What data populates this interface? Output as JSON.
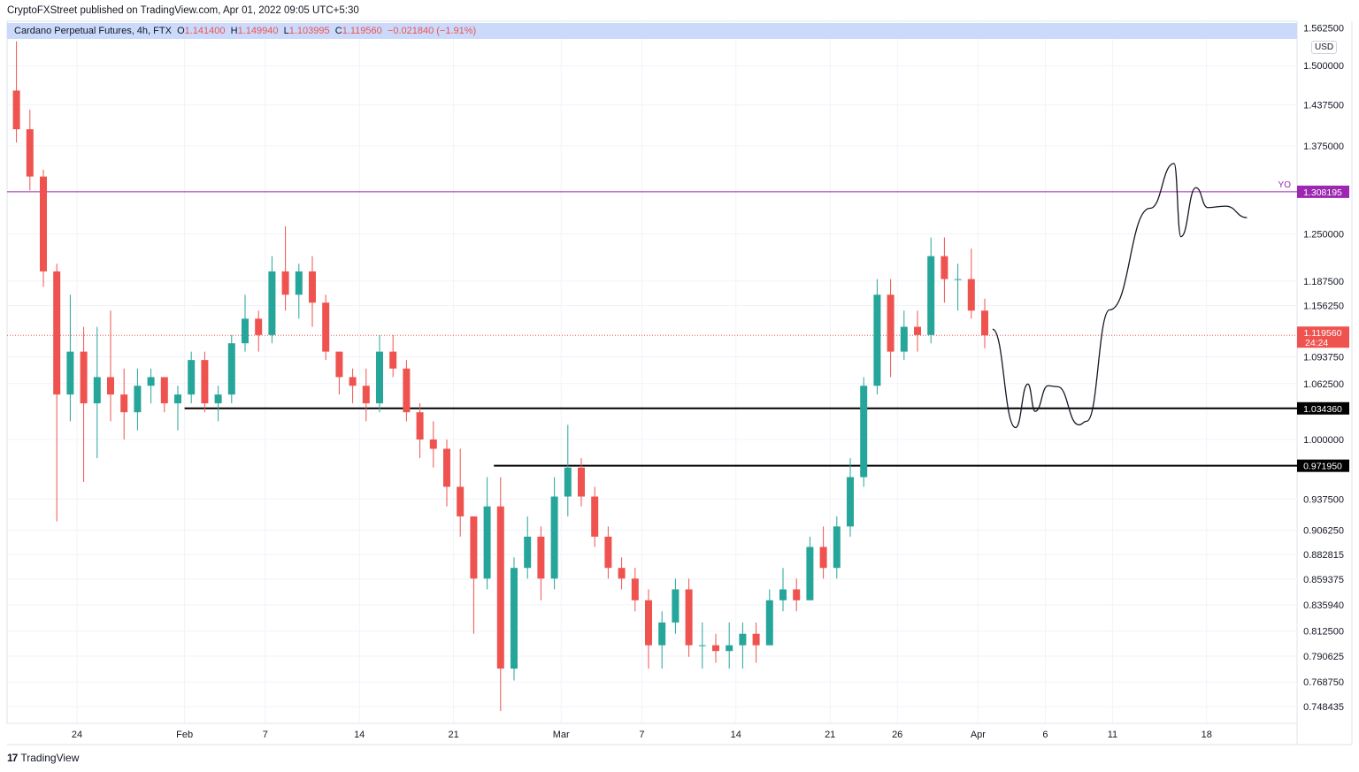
{
  "header": {
    "published": "CryptoFXStreet published on TradingView.com, Apr 01, 2022 09:05 UTC+5:30",
    "symbol": "Cardano Perpetual Futures, 4h, FTX",
    "o_label": "O",
    "o": "1.141400",
    "h_label": "H",
    "h": "1.149940",
    "l_label": "L",
    "l": "1.103995",
    "c_label": "C",
    "c": "1.119560",
    "change": "−0.021840 (−1.91%)"
  },
  "currency_badge": "USD",
  "footer": {
    "logo": "17",
    "brand": "TradingView"
  },
  "colors": {
    "up": "#26a69a",
    "down": "#ef5350",
    "yo_line": "#9c27b0",
    "level_line": "#000000",
    "legend_bg": "#cbd9fb"
  },
  "chart_data": {
    "type": "candlestick",
    "timeframe_shown": "4h",
    "y_scale": "log",
    "ylim": [
      0.735,
      1.58
    ],
    "xlim": [
      "2022-01-19",
      "2022-04-24"
    ],
    "grid": true,
    "y_ticks": [
      "1.562500",
      "1.500000",
      "1.437500",
      "1.375000",
      "1.250000",
      "1.187500",
      "1.156250",
      "1.093750",
      "1.062500",
      "1.000000",
      "0.937500",
      "0.906250",
      "0.882815",
      "0.859375",
      "0.835940",
      "0.812500",
      "0.790625",
      "0.768750",
      "0.748435"
    ],
    "x_ticks": [
      {
        "date": "2022-01-24",
        "label": "24"
      },
      {
        "date": "2022-02-01",
        "label": "Feb"
      },
      {
        "date": "2022-02-07",
        "label": "7"
      },
      {
        "date": "2022-02-14",
        "label": "14"
      },
      {
        "date": "2022-02-21",
        "label": "21"
      },
      {
        "date": "2022-03-01",
        "label": "Mar"
      },
      {
        "date": "2022-03-07",
        "label": "7"
      },
      {
        "date": "2022-03-14",
        "label": "14"
      },
      {
        "date": "2022-03-21",
        "label": "21"
      },
      {
        "date": "2022-03-26",
        "label": "26"
      },
      {
        "date": "2022-04-01",
        "label": "Apr"
      },
      {
        "date": "2022-04-06",
        "label": "6"
      },
      {
        "date": "2022-04-11",
        "label": "11"
      },
      {
        "date": "2022-04-18",
        "label": "18"
      }
    ],
    "ohlc_daily_approx": [
      [
        "2022-01-19",
        1.46,
        1.54,
        1.38,
        1.4
      ],
      [
        "2022-01-20",
        1.4,
        1.43,
        1.31,
        1.33
      ],
      [
        "2022-01-21",
        1.33,
        1.34,
        1.18,
        1.2
      ],
      [
        "2022-01-22",
        1.2,
        1.21,
        0.915,
        1.05
      ],
      [
        "2022-01-23",
        1.05,
        1.17,
        1.02,
        1.1
      ],
      [
        "2022-01-24",
        1.1,
        1.13,
        0.955,
        1.04
      ],
      [
        "2022-01-25",
        1.04,
        1.13,
        0.98,
        1.07
      ],
      [
        "2022-01-26",
        1.07,
        1.15,
        1.02,
        1.05
      ],
      [
        "2022-01-27",
        1.05,
        1.08,
        1.0,
        1.03
      ],
      [
        "2022-01-28",
        1.03,
        1.08,
        1.01,
        1.06
      ],
      [
        "2022-01-29",
        1.06,
        1.08,
        1.04,
        1.07
      ],
      [
        "2022-01-30",
        1.07,
        1.07,
        1.03,
        1.04
      ],
      [
        "2022-01-31",
        1.04,
        1.06,
        1.01,
        1.05
      ],
      [
        "2022-02-01",
        1.05,
        1.1,
        1.04,
        1.09
      ],
      [
        "2022-02-02",
        1.09,
        1.1,
        1.03,
        1.04
      ],
      [
        "2022-02-03",
        1.04,
        1.06,
        1.02,
        1.05
      ],
      [
        "2022-02-04",
        1.05,
        1.12,
        1.04,
        1.11
      ],
      [
        "2022-02-05",
        1.11,
        1.17,
        1.1,
        1.14
      ],
      [
        "2022-02-06",
        1.14,
        1.15,
        1.1,
        1.12
      ],
      [
        "2022-02-07",
        1.12,
        1.22,
        1.11,
        1.2
      ],
      [
        "2022-02-08",
        1.2,
        1.26,
        1.15,
        1.17
      ],
      [
        "2022-02-09",
        1.17,
        1.21,
        1.14,
        1.2
      ],
      [
        "2022-02-10",
        1.2,
        1.22,
        1.13,
        1.16
      ],
      [
        "2022-02-11",
        1.16,
        1.17,
        1.09,
        1.1
      ],
      [
        "2022-02-12",
        1.1,
        1.1,
        1.05,
        1.07
      ],
      [
        "2022-02-13",
        1.07,
        1.08,
        1.04,
        1.06
      ],
      [
        "2022-02-14",
        1.06,
        1.08,
        1.02,
        1.04
      ],
      [
        "2022-02-15",
        1.04,
        1.12,
        1.03,
        1.1
      ],
      [
        "2022-02-16",
        1.1,
        1.12,
        1.07,
        1.08
      ],
      [
        "2022-02-17",
        1.08,
        1.09,
        1.02,
        1.03
      ],
      [
        "2022-02-18",
        1.03,
        1.04,
        0.98,
        1.0
      ],
      [
        "2022-02-19",
        1.0,
        1.02,
        0.97,
        0.99
      ],
      [
        "2022-02-20",
        0.99,
        1.0,
        0.93,
        0.95
      ],
      [
        "2022-02-21",
        0.95,
        0.99,
        0.9,
        0.92
      ],
      [
        "2022-02-22",
        0.92,
        0.92,
        0.81,
        0.86
      ],
      [
        "2022-02-23",
        0.86,
        0.96,
        0.85,
        0.93
      ],
      [
        "2022-02-24",
        0.93,
        0.96,
        0.745,
        0.78
      ],
      [
        "2022-02-25",
        0.78,
        0.88,
        0.77,
        0.87
      ],
      [
        "2022-02-26",
        0.87,
        0.92,
        0.86,
        0.9
      ],
      [
        "2022-02-27",
        0.9,
        0.91,
        0.84,
        0.86
      ],
      [
        "2022-02-28",
        0.86,
        0.96,
        0.85,
        0.94
      ],
      [
        "2022-03-01",
        0.94,
        1.016,
        0.92,
        0.97
      ],
      [
        "2022-03-02",
        0.97,
        0.98,
        0.93,
        0.94
      ],
      [
        "2022-03-03",
        0.94,
        0.95,
        0.89,
        0.9
      ],
      [
        "2022-03-04",
        0.9,
        0.91,
        0.86,
        0.87
      ],
      [
        "2022-03-05",
        0.87,
        0.88,
        0.85,
        0.86
      ],
      [
        "2022-03-06",
        0.86,
        0.87,
        0.83,
        0.84
      ],
      [
        "2022-03-07",
        0.84,
        0.85,
        0.78,
        0.8
      ],
      [
        "2022-03-08",
        0.8,
        0.83,
        0.78,
        0.82
      ],
      [
        "2022-03-09",
        0.82,
        0.86,
        0.81,
        0.85
      ],
      [
        "2022-03-10",
        0.85,
        0.86,
        0.79,
        0.8
      ],
      [
        "2022-03-11",
        0.8,
        0.82,
        0.78,
        0.8
      ],
      [
        "2022-03-12",
        0.8,
        0.81,
        0.785,
        0.795
      ],
      [
        "2022-03-13",
        0.795,
        0.82,
        0.78,
        0.8
      ],
      [
        "2022-03-14",
        0.8,
        0.82,
        0.78,
        0.81
      ],
      [
        "2022-03-15",
        0.81,
        0.82,
        0.785,
        0.8
      ],
      [
        "2022-03-16",
        0.8,
        0.85,
        0.8,
        0.84
      ],
      [
        "2022-03-17",
        0.84,
        0.87,
        0.83,
        0.85
      ],
      [
        "2022-03-18",
        0.85,
        0.86,
        0.83,
        0.84
      ],
      [
        "2022-03-19",
        0.84,
        0.9,
        0.84,
        0.89
      ],
      [
        "2022-03-20",
        0.89,
        0.91,
        0.86,
        0.87
      ],
      [
        "2022-03-21",
        0.87,
        0.92,
        0.86,
        0.91
      ],
      [
        "2022-03-22",
        0.91,
        0.98,
        0.9,
        0.96
      ],
      [
        "2022-03-23",
        0.96,
        1.07,
        0.95,
        1.06
      ],
      [
        "2022-03-24",
        1.06,
        1.19,
        1.05,
        1.17
      ],
      [
        "2022-03-25",
        1.17,
        1.19,
        1.07,
        1.1
      ],
      [
        "2022-03-26",
        1.1,
        1.15,
        1.09,
        1.13
      ],
      [
        "2022-03-27",
        1.13,
        1.15,
        1.1,
        1.12
      ],
      [
        "2022-03-28",
        1.12,
        1.245,
        1.11,
        1.22
      ],
      [
        "2022-03-29",
        1.22,
        1.245,
        1.16,
        1.19
      ],
      [
        "2022-03-30",
        1.19,
        1.21,
        1.15,
        1.19
      ],
      [
        "2022-03-31",
        1.19,
        1.23,
        1.14,
        1.15
      ],
      [
        "2022-04-01",
        1.15,
        1.165,
        1.103995,
        1.11956
      ]
    ],
    "horizontal_levels": [
      {
        "label": "YO",
        "price": 1.308195,
        "price_label": "1.308195",
        "from": "2022-01-19",
        "color": "#9c27b0"
      },
      {
        "price": 1.03436,
        "price_label": "1.034360",
        "from": "2022-02-01",
        "color": "#000000"
      },
      {
        "price": 0.97195,
        "price_label": "0.971950",
        "from": "2022-02-24",
        "color": "#000000"
      }
    ],
    "last_price": {
      "price": 1.11956,
      "price_label": "1.119560",
      "countdown": "24:24",
      "color": "#ef5350"
    },
    "drawn_projection": [
      [
        "2022-04-02T02:00",
        1.127
      ],
      [
        "2022-04-03T19:00",
        1.013
      ],
      [
        "2022-04-04T17:00",
        1.062
      ],
      [
        "2022-04-05T06:00",
        1.031
      ],
      [
        "2022-04-06T05:00",
        1.06
      ],
      [
        "2022-04-06T22:00",
        1.059
      ],
      [
        "2022-04-08T12:00",
        1.016
      ],
      [
        "2022-04-09T02:00",
        1.02
      ],
      [
        "2022-04-10T19:00",
        1.151
      ],
      [
        "2022-04-13T19:00",
        1.285
      ],
      [
        "2022-04-15T14:00",
        1.349
      ],
      [
        "2022-04-16T02:00",
        1.246
      ],
      [
        "2022-04-17T05:00",
        1.314
      ],
      [
        "2022-04-18T02:00",
        1.286
      ],
      [
        "2022-04-19T10:00",
        1.288
      ],
      [
        "2022-04-21T00:00",
        1.272
      ]
    ]
  }
}
